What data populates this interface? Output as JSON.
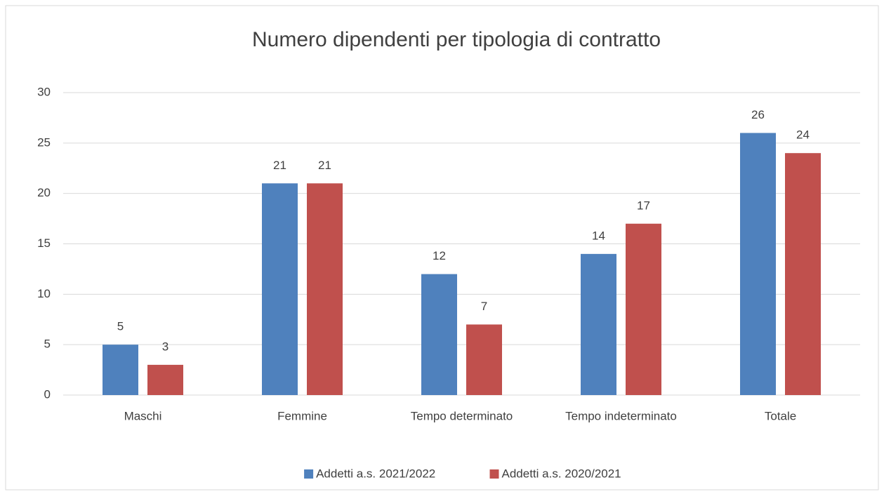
{
  "chart_data": {
    "type": "bar",
    "title": "Numero dipendenti per tipologia di contratto",
    "categories": [
      "Maschi",
      "Femmine",
      "Tempo determinato",
      "Tempo indeterminato",
      "Totale"
    ],
    "series": [
      {
        "name": "Addetti a.s. 2021/2022",
        "color": "#4f81bd",
        "values": [
          5,
          21,
          12,
          14,
          26
        ]
      },
      {
        "name": "Addetti a.s. 2020/2021",
        "color": "#c0504d",
        "values": [
          3,
          21,
          7,
          17,
          24
        ]
      }
    ],
    "ylim": [
      0,
      30
    ],
    "yticks": [
      0,
      5,
      10,
      15,
      20,
      25,
      30
    ],
    "grid": true,
    "legend": "bottom"
  }
}
